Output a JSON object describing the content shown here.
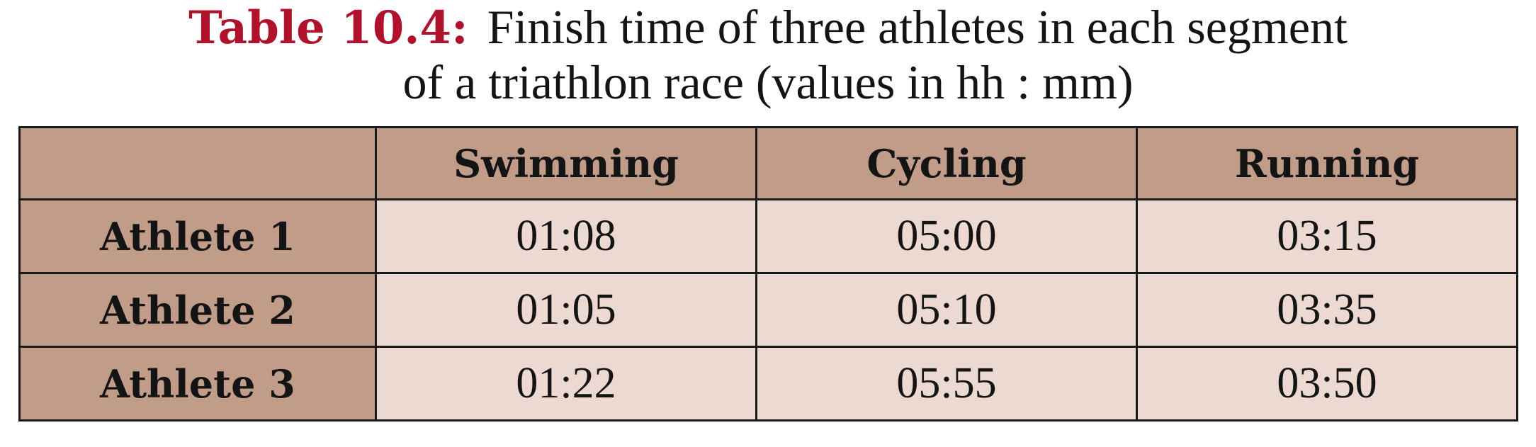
{
  "caption": {
    "label": "Table 10.4:",
    "line1": "Finish time of three athletes in each segment",
    "line2": "of a triathlon race (values in hh : mm)"
  },
  "colors": {
    "caption_label": "#b0122c",
    "header_fill": "#c19c89",
    "cell_fill": "#ecd9d2",
    "border": "#1a1a1a"
  },
  "table": {
    "corner": "",
    "columns": [
      "Swimming",
      "Cycling",
      "Running"
    ],
    "rows": [
      {
        "label": "Athlete 1",
        "values": [
          "01:08",
          "05:00",
          "03:15"
        ]
      },
      {
        "label": "Athlete 2",
        "values": [
          "01:05",
          "05:10",
          "03:35"
        ]
      },
      {
        "label": "Athlete 3",
        "values": [
          "01:22",
          "05:55",
          "03:50"
        ]
      }
    ]
  }
}
